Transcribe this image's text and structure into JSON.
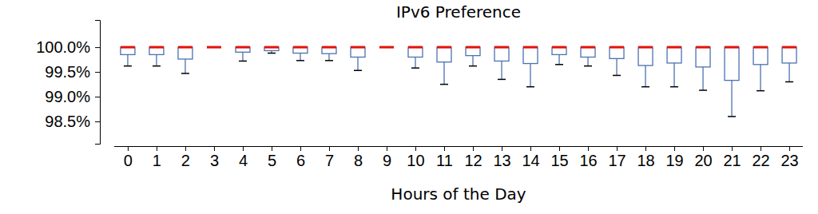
{
  "chart_data": {
    "type": "box",
    "title": "IPv6 Preference",
    "x_label": "Hours of the Day",
    "categories": [
      "0",
      "1",
      "2",
      "3",
      "4",
      "5",
      "6",
      "7",
      "8",
      "9",
      "10",
      "11",
      "12",
      "13",
      "14",
      "15",
      "16",
      "17",
      "18",
      "19",
      "20",
      "21",
      "22",
      "23"
    ],
    "low": [
      99.62,
      99.62,
      99.47,
      100.0,
      99.72,
      99.88,
      99.73,
      99.73,
      99.53,
      100.0,
      99.58,
      99.25,
      99.62,
      99.35,
      99.2,
      99.65,
      99.62,
      99.43,
      99.2,
      99.2,
      99.13,
      98.6,
      99.12,
      99.3
    ],
    "q1": [
      99.85,
      99.85,
      99.76,
      100.0,
      99.9,
      99.93,
      99.88,
      99.87,
      99.8,
      100.0,
      99.8,
      99.7,
      99.83,
      99.72,
      99.67,
      99.85,
      99.8,
      99.77,
      99.63,
      99.68,
      99.6,
      99.33,
      99.65,
      99.68
    ],
    "median": [
      100.0,
      100.0,
      100.0,
      100.0,
      100.0,
      100.0,
      100.0,
      100.0,
      100.0,
      100.0,
      100.0,
      100.0,
      100.0,
      100.0,
      100.0,
      100.0,
      100.0,
      100.0,
      100.0,
      100.0,
      100.0,
      100.0,
      100.0,
      100.0
    ],
    "q3": [
      100.0,
      100.0,
      100.0,
      100.0,
      100.0,
      100.0,
      100.0,
      100.0,
      100.0,
      100.0,
      100.0,
      100.0,
      100.0,
      100.0,
      100.0,
      100.0,
      100.0,
      100.0,
      100.0,
      100.0,
      100.0,
      100.0,
      100.0,
      100.0
    ],
    "high": [
      100.0,
      100.0,
      100.0,
      100.0,
      100.0,
      100.0,
      100.0,
      100.0,
      100.0,
      100.0,
      100.0,
      100.0,
      100.0,
      100.0,
      100.0,
      100.0,
      100.0,
      100.0,
      100.0,
      100.0,
      100.0,
      100.0,
      100.0,
      100.0
    ],
    "color": "#4c72b0",
    "median_color": "#e3120b",
    "ylim": [
      98.05,
      100.55
    ],
    "yticks": [
      {
        "value": 98.5,
        "label": "98.5%"
      },
      {
        "value": 99.0,
        "label": "99.0%"
      },
      {
        "value": 99.5,
        "label": "99.5%"
      },
      {
        "value": 100.0,
        "label": "100.0%"
      }
    ],
    "grid": false
  }
}
